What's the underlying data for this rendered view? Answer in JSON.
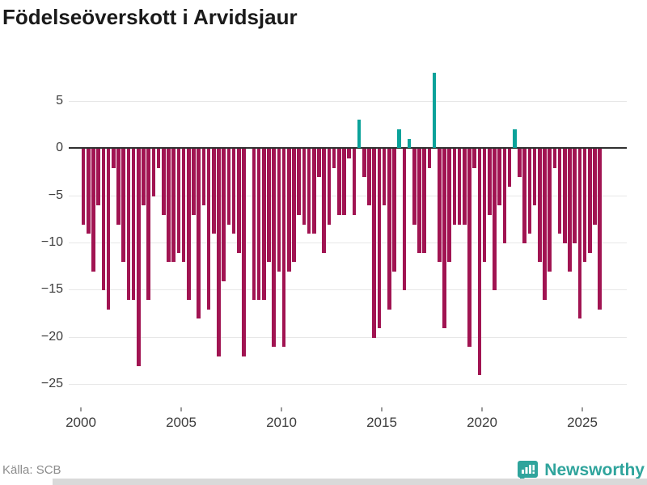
{
  "title": "Födelseöverskott i Arvidsjaur",
  "footer": {
    "source": "Källa: SCB",
    "brand": "Newsworthy"
  },
  "chart_data": {
    "type": "bar",
    "title": "Födelseöverskott i Arvidsjaur",
    "xlabel": "",
    "ylabel": "",
    "start_year": 2000,
    "frequency": "quarterly",
    "x_tick_labels": [
      "2000",
      "2005",
      "2010",
      "2015",
      "2020",
      "2025"
    ],
    "y_ticks": [
      5,
      0,
      -5,
      -10,
      -15,
      -20,
      -25
    ],
    "ylim": [
      -25.5,
      8.5
    ],
    "grid": true,
    "legend": "none",
    "colors": {
      "negative": "#a11452",
      "positive": "#0ba29a",
      "zero_line": "#303030",
      "gridline": "#e7e7e7",
      "brand_teal": "#2fa49c"
    },
    "values": [
      -8,
      -9,
      -13,
      -6,
      -15,
      -17,
      -2,
      -8,
      -12,
      -16,
      -16,
      -23,
      -6,
      -16,
      -5,
      -2,
      -7,
      -12,
      -12,
      -11,
      -12,
      -16,
      -7,
      -18,
      -6,
      -17,
      -9,
      -22,
      -14,
      -8,
      -9,
      -11,
      -22,
      0,
      -16,
      -16,
      -16,
      -12,
      -21,
      -13,
      -21,
      -13,
      -12,
      -7,
      -8,
      -9,
      -9,
      -3,
      -11,
      -8,
      -2,
      -7,
      -7,
      -1,
      -7,
      3,
      -3,
      -6,
      -20,
      -19,
      -6,
      -17,
      -13,
      2,
      -15,
      1,
      -8,
      -11,
      -11,
      -2,
      8,
      -12,
      -19,
      -12,
      -8,
      -8,
      -8,
      -21,
      -2,
      -24,
      -12,
      -7,
      -15,
      -6,
      -10,
      -4,
      2,
      -3,
      -10,
      -9,
      -6,
      -12,
      -16,
      -13,
      -2,
      -9,
      -10,
      -13,
      -10,
      -18,
      -12,
      -11,
      -8,
      -17
    ]
  }
}
